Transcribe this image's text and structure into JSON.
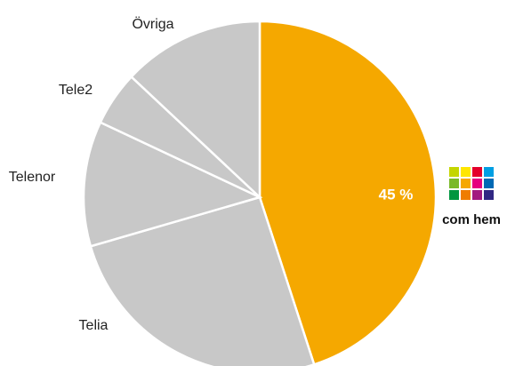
{
  "chart_data": {
    "type": "pie",
    "categories": [
      "com hem",
      "Telia",
      "Telenor",
      "Tele2",
      "Övriga"
    ],
    "values": [
      45,
      25.5,
      11.5,
      5,
      13
    ],
    "value_labels": [
      "45 %",
      null,
      null,
      null,
      null
    ],
    "colors": [
      "#f5a800",
      "#c8c8c8",
      "#c8c8c8",
      "#c8c8c8",
      "#c8c8c8"
    ]
  }
}
